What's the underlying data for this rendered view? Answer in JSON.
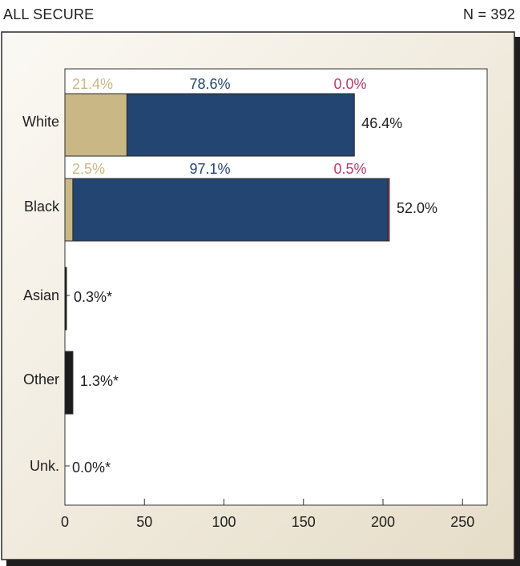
{
  "header": {
    "title": "ALL SECURE",
    "count": "N = 392"
  },
  "chart_data": {
    "type": "bar",
    "orientation": "horizontal",
    "stacked": true,
    "categories": [
      "White",
      "Black",
      "Asian",
      "Other",
      "Unk."
    ],
    "x_ticks": [
      0,
      50,
      100,
      150,
      200,
      250
    ],
    "xlim": [
      0,
      265
    ],
    "grid": false,
    "colors": {
      "tan": "#c9b886",
      "blue": "#234571",
      "magenta": "#b33c6a",
      "dark": "#1c1c1c"
    },
    "bars": [
      {
        "category": "White",
        "total_label": "46.4%",
        "segments": [
          {
            "value": 39,
            "color": "tan",
            "label": "21.4%"
          },
          {
            "value": 143,
            "color": "blue",
            "label": "78.6%"
          },
          {
            "value": 0,
            "color": "magenta",
            "label": "0.0%"
          }
        ]
      },
      {
        "category": "Black",
        "total_label": "52.0%",
        "segments": [
          {
            "value": 5,
            "color": "tan",
            "label": "2.5%"
          },
          {
            "value": 198,
            "color": "blue",
            "label": "97.1%"
          },
          {
            "value": 1,
            "color": "magenta",
            "label": "0.5%"
          }
        ]
      },
      {
        "category": "Asian",
        "total_label": "0.3%*",
        "segments": [
          {
            "value": 1,
            "color": "dark",
            "label": ""
          }
        ]
      },
      {
        "category": "Other",
        "total_label": "1.3%*",
        "segments": [
          {
            "value": 5,
            "color": "dark",
            "label": ""
          }
        ]
      },
      {
        "category": "Unk.",
        "total_label": "0.0%*",
        "segments": [
          {
            "value": 0,
            "color": "dark",
            "label": ""
          }
        ]
      }
    ]
  }
}
